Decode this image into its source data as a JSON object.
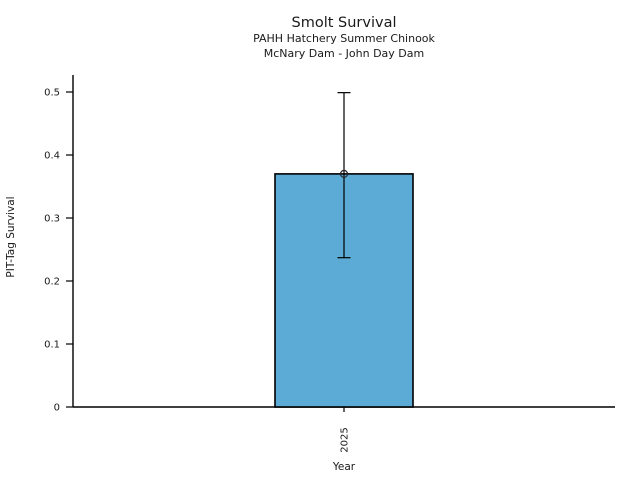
{
  "figure": {
    "background": "#ffffff"
  },
  "chart_data": {
    "type": "bar",
    "title": "Smolt Survival",
    "subtitle_lines": [
      "PAHH Hatchery Summer Chinook",
      "McNary Dam - John Day Dam"
    ],
    "xlabel": "Year",
    "ylabel": "PIT-Tag Survival",
    "categories": [
      "2025"
    ],
    "values": [
      0.37
    ],
    "error_low": [
      0.237
    ],
    "error_high": [
      0.499
    ],
    "point_markers": [
      0.37
    ],
    "ylim": [
      0,
      0.527
    ],
    "yticks": [
      0,
      0.1,
      0.2,
      0.3,
      0.4,
      0.5
    ],
    "ytick_labels": [
      "0",
      "0.1",
      "0.2",
      "0.3",
      "0.4",
      "0.5"
    ],
    "grid": false,
    "legend": "none",
    "marker": "open-circle",
    "bar_color": "#5babd6",
    "bar_edge_color": "#000000",
    "error_color": "#000000",
    "marker_edge_color": "#262626",
    "axis_color": "#000000",
    "text_color": "#1a1a1a"
  }
}
